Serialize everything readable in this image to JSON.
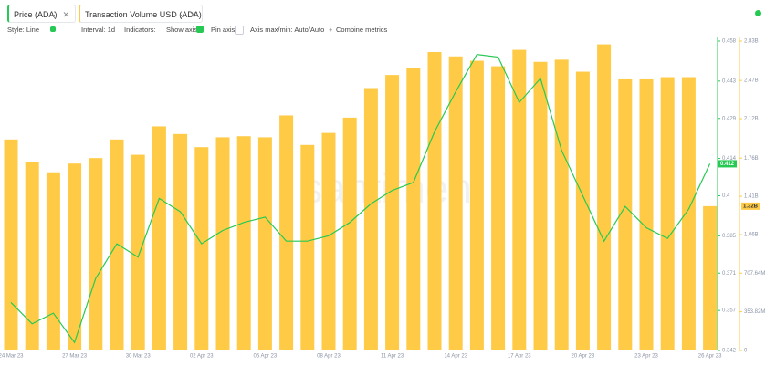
{
  "ui": {
    "toolbar": [
      "Style: Line",
      "Interval: 1d",
      "Indicators:",
      "Show axis",
      "Pin axis",
      "Axis max/min: Auto/Auto",
      "Combine metrics"
    ],
    "watermark": "santiment"
  },
  "chart_data": {
    "type": "combo",
    "categories": [
      "24 Mar 23",
      null,
      null,
      "27 Mar 23",
      null,
      null,
      "30 Mar 23",
      null,
      null,
      "02 Apr 23",
      null,
      null,
      "05 Apr 23",
      null,
      null,
      "08 Apr 23",
      null,
      null,
      "11 Apr 23",
      null,
      null,
      "14 Apr 23",
      null,
      null,
      "17 Apr 23",
      null,
      null,
      "20 Apr 23",
      null,
      null,
      "23 Apr 23",
      null,
      null,
      "26 Apr 23"
    ],
    "series": [
      {
        "name": "Price (ADA)",
        "color": "#26c953",
        "axis": "y",
        "values": [
          0.36,
          0.352,
          0.356,
          0.345,
          0.369,
          0.382,
          0.377,
          0.399,
          0.394,
          0.382,
          0.387,
          0.39,
          0.392,
          0.383,
          0.383,
          0.385,
          0.39,
          0.397,
          0.402,
          0.405,
          0.424,
          0.439,
          0.453,
          0.452,
          0.435,
          0.444,
          0.417,
          0.4,
          0.383,
          0.396,
          0.388,
          0.384,
          0.395,
          0.412
        ]
      },
      {
        "name": "Transaction Volume USD (ADA)",
        "color": "#ffcb47",
        "axis": "y2",
        "values": [
          1930000000,
          1720000000,
          1630000000,
          1710000000,
          1760000000,
          1930000000,
          1790000000,
          2050000000,
          1980000000,
          1860000000,
          1950000000,
          1960000000,
          1950000000,
          2150000000,
          1880000000,
          1990000000,
          2130000000,
          2400000000,
          2520000000,
          2580000000,
          2730000000,
          2690000000,
          2650000000,
          2600000000,
          2750000000,
          2640000000,
          2660000000,
          2550000000,
          2800000000,
          2480000000,
          2480000000,
          2500000000,
          2500000000,
          1320000000
        ],
        "value_labels": [
          null,
          null,
          null,
          null,
          null,
          null,
          null,
          null,
          null,
          null,
          null,
          null,
          null,
          null,
          null,
          null,
          null,
          null,
          null,
          null,
          null,
          null,
          null,
          null,
          null,
          null,
          null,
          null,
          null,
          null,
          null,
          null,
          null,
          "1.32B"
        ]
      }
    ],
    "ylim": [
      0.342,
      0.458
    ],
    "yticks": [
      0.342,
      0.357,
      0.371,
      0.385,
      0.4,
      0.414,
      0.429,
      0.443,
      0.458
    ],
    "y2lim": [
      0,
      2830000000
    ],
    "y2ticks": [
      0,
      {
        "value": 353820000,
        "label": "353.82M"
      },
      {
        "value": 707640000,
        "label": "707.64M"
      },
      {
        "value": 1060000000,
        "label": "1.06B"
      },
      {
        "value": 1410000000,
        "label": "1.41B"
      },
      {
        "value": 1760000000,
        "label": "1.76B"
      },
      {
        "value": 2120000000,
        "label": "2.12B"
      },
      {
        "value": 2470000000,
        "label": "2.47B"
      },
      {
        "value": 2830000000,
        "label": "2.83B"
      }
    ]
  }
}
